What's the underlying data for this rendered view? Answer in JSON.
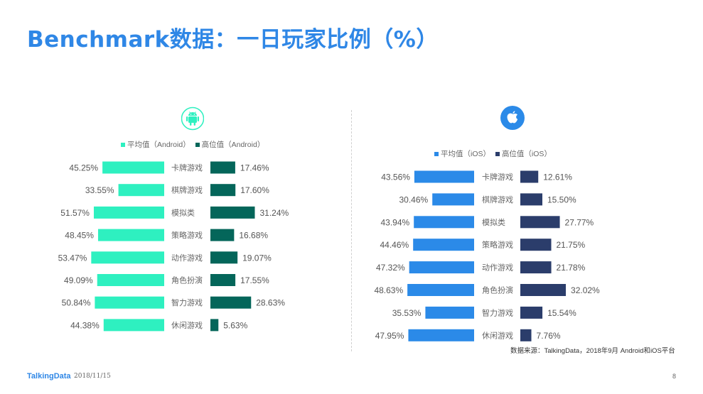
{
  "title": "Benchmark数据：一日玩家比例（%）",
  "footer": {
    "logo": "TalkingData",
    "date": "2018/11/15",
    "page": "8",
    "source": "数据来源：TalkingData，2018年9月 Android和iOS平台"
  },
  "colors": {
    "android_avg": "#2ef0c0",
    "android_high": "#04665a",
    "ios_avg": "#2b8ae8",
    "ios_high": "#2b3d6b",
    "title": "#2f87e6"
  },
  "icons": {
    "android": "android-icon",
    "ios": "apple-icon"
  },
  "chart_data": [
    {
      "type": "bar",
      "platform": "Android",
      "categories": [
        "卡牌游戏",
        "棋牌游戏",
        "模拟类",
        "策略游戏",
        "动作游戏",
        "角色扮演",
        "智力游戏",
        "休闲游戏"
      ],
      "series": [
        {
          "name": "平均值（Android）",
          "values": [
            45.25,
            33.55,
            51.57,
            48.45,
            53.47,
            49.09,
            50.84,
            44.38
          ],
          "labels": [
            "45.25%",
            "33.55%",
            "51.57%",
            "48.45%",
            "53.47%",
            "49.09%",
            "50.84%",
            "44.38%"
          ]
        },
        {
          "name": "高位值（Android）",
          "values": [
            17.46,
            17.6,
            31.24,
            16.68,
            19.07,
            17.55,
            28.63,
            5.63
          ],
          "labels": [
            "17.46%",
            "17.60%",
            "31.24%",
            "16.68%",
            "19.07%",
            "17.55%",
            "28.63%",
            "5.63%"
          ]
        }
      ],
      "legend_position": "top"
    },
    {
      "type": "bar",
      "platform": "iOS",
      "categories": [
        "卡牌游戏",
        "棋牌游戏",
        "模拟类",
        "策略游戏",
        "动作游戏",
        "角色扮演",
        "智力游戏",
        "休闲游戏"
      ],
      "series": [
        {
          "name": "平均值（iOS）",
          "values": [
            43.56,
            30.46,
            43.94,
            44.46,
            47.32,
            48.63,
            35.53,
            47.95
          ],
          "labels": [
            "43.56%",
            "30.46%",
            "43.94%",
            "44.46%",
            "47.32%",
            "48.63%",
            "35.53%",
            "47.95%"
          ]
        },
        {
          "name": "高位值（iOS）",
          "values": [
            12.61,
            15.5,
            27.77,
            21.75,
            21.78,
            32.02,
            15.54,
            7.76
          ],
          "labels": [
            "12.61%",
            "15.50%",
            "27.77%",
            "21.75%",
            "21.78%",
            "32.02%",
            "15.54%",
            "7.76%"
          ]
        }
      ],
      "legend_position": "top"
    }
  ]
}
